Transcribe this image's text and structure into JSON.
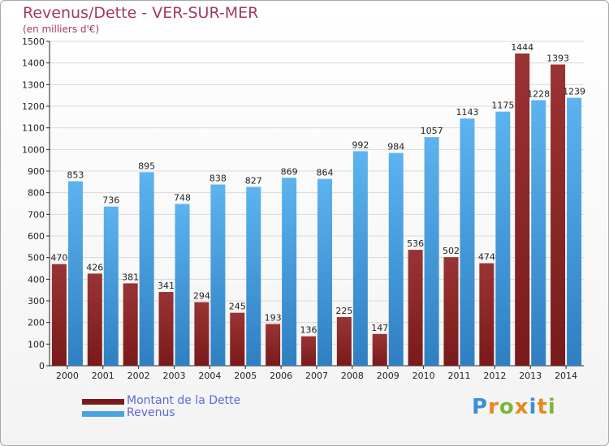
{
  "title": "Revenus/Dette - VER-SUR-MER",
  "subtitle": "(en milliers d'€)",
  "colors": {
    "dette": "#7a1a1a",
    "revenus": "#4aa3e3",
    "title": "#a33a5e",
    "legend_text": "#5c69d8",
    "grid": "#d9d9d9",
    "axis": "#222222"
  },
  "legend": {
    "dette_label": "Montant de la Dette",
    "revenus_label": "Revenus"
  },
  "logo": {
    "text": "Proxiti",
    "letter_colors": [
      "#3b8fd8",
      "#e8871f",
      "#78b83a",
      "#e8871f",
      "#3b8fd8",
      "#e8871f",
      "#78b83a"
    ]
  },
  "chart_data": {
    "type": "bar",
    "categories": [
      "2000",
      "2001",
      "2002",
      "2003",
      "2004",
      "2005",
      "2006",
      "2007",
      "2008",
      "2009",
      "2010",
      "2011",
      "2012",
      "2013",
      "2014"
    ],
    "series": [
      {
        "name": "Montant de la Dette",
        "values": [
          470,
          426,
          381,
          341,
          294,
          245,
          193,
          136,
          225,
          147,
          536,
          502,
          474,
          1444,
          1393
        ]
      },
      {
        "name": "Revenus",
        "values": [
          853,
          736,
          895,
          748,
          838,
          827,
          869,
          864,
          992,
          984,
          1057,
          1143,
          1175,
          1228,
          1239
        ]
      }
    ],
    "ylim": [
      0,
      1500
    ],
    "yticks": [
      0,
      100,
      200,
      300,
      400,
      500,
      600,
      700,
      800,
      900,
      1000,
      1100,
      1200,
      1300,
      1400,
      1500
    ],
    "grid": true,
    "legend_position": "bottom-left"
  }
}
